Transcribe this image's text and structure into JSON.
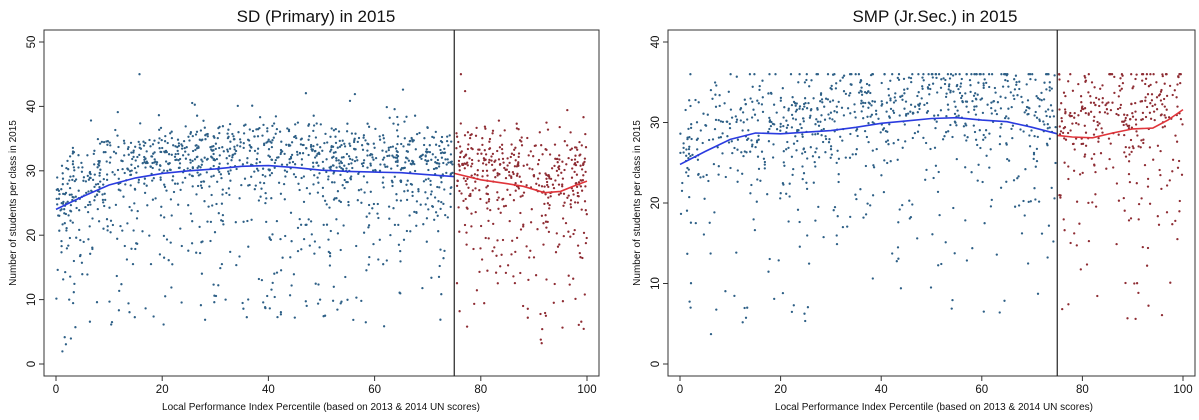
{
  "colors": {
    "left_points": "#2d5f86",
    "right_points": "#8e2c33",
    "left_fit": "#2a3be0",
    "right_fit": "#e0343a"
  },
  "chart_data": [
    {
      "type": "scatter",
      "title": "SD (Primary) in 2015",
      "xlabel": "Local Performance Index Percentile (based on 2013 & 2014 UN scores)",
      "ylabel": "Number of students per class in 2015",
      "xlim": [
        0,
        100
      ],
      "ylim": [
        0,
        50
      ],
      "xticks": [
        0,
        20,
        40,
        60,
        80,
        100
      ],
      "yticks": [
        0,
        10,
        20,
        30,
        40,
        50
      ],
      "cutoff": 75,
      "scatter_count": {
        "left": 1300,
        "right": 450
      },
      "series": [
        {
          "name": "",
          "side": "left",
          "x": [
            0,
            5,
            10,
            15,
            20,
            25,
            30,
            35,
            40,
            45,
            50,
            55,
            60,
            65,
            70,
            75
          ],
          "values": [
            24.0,
            26.0,
            27.8,
            28.9,
            29.6,
            30.0,
            30.3,
            30.7,
            30.8,
            30.5,
            30.1,
            29.9,
            29.8,
            29.7,
            29.4,
            29.1
          ]
        },
        {
          "name": "",
          "side": "right",
          "x": [
            75,
            80,
            85,
            88,
            92,
            95,
            98,
            100
          ],
          "values": [
            29.6,
            28.6,
            28.0,
            27.6,
            26.6,
            26.8,
            27.8,
            28.4
          ]
        }
      ]
    },
    {
      "type": "scatter",
      "title": "SMP (Jr.Sec.) in 2015",
      "xlabel": "Local Performance Index Percentile (based on 2013 & 2014 UN scores)",
      "ylabel": "Number of students per class in 2015",
      "xlim": [
        0,
        100
      ],
      "ylim": [
        0,
        40
      ],
      "xticks": [
        0,
        20,
        40,
        60,
        80,
        100
      ],
      "yticks": [
        0,
        10,
        20,
        30,
        40
      ],
      "cutoff": 75,
      "scatter_count": {
        "left": 900,
        "right": 330
      },
      "series": [
        {
          "name": "",
          "side": "left",
          "x": [
            0,
            5,
            10,
            15,
            20,
            25,
            30,
            35,
            40,
            45,
            50,
            55,
            60,
            65,
            70,
            75
          ],
          "values": [
            24.8,
            26.4,
            27.9,
            28.7,
            28.6,
            28.8,
            29.0,
            29.4,
            29.9,
            30.2,
            30.5,
            30.6,
            30.3,
            30.1,
            29.4,
            28.6
          ]
        },
        {
          "name": "",
          "side": "right",
          "x": [
            75,
            78,
            82,
            86,
            90,
            94,
            97,
            100
          ],
          "values": [
            28.4,
            28.2,
            28.1,
            28.7,
            29.2,
            29.3,
            30.3,
            31.6
          ]
        }
      ]
    }
  ]
}
